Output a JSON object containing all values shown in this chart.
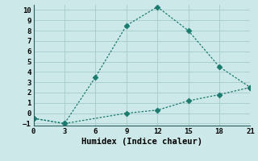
{
  "line1_x": [
    0,
    3,
    6,
    9,
    12,
    15,
    18,
    21
  ],
  "line1_y": [
    -0.5,
    -1,
    3.5,
    8.5,
    10.3,
    8.0,
    4.5,
    2.5
  ],
  "line2_x": [
    0,
    3,
    9,
    12,
    15,
    18,
    21
  ],
  "line2_y": [
    -0.5,
    -1,
    0.0,
    0.3,
    1.2,
    1.8,
    2.5
  ],
  "color": "#1a7a6e",
  "bg_color": "#cce8e8",
  "grid_color": "#aacfcf",
  "xlabel": "Humidex (Indice chaleur)",
  "xlim": [
    0,
    21
  ],
  "ylim": [
    -1.2,
    10.5
  ],
  "xticks": [
    0,
    3,
    6,
    9,
    12,
    15,
    18,
    21
  ],
  "yticks": [
    -1,
    0,
    1,
    2,
    3,
    4,
    5,
    6,
    7,
    8,
    9,
    10
  ],
  "xlabel_fontsize": 7.5,
  "tick_fontsize": 6.5,
  "markersize": 3.5
}
